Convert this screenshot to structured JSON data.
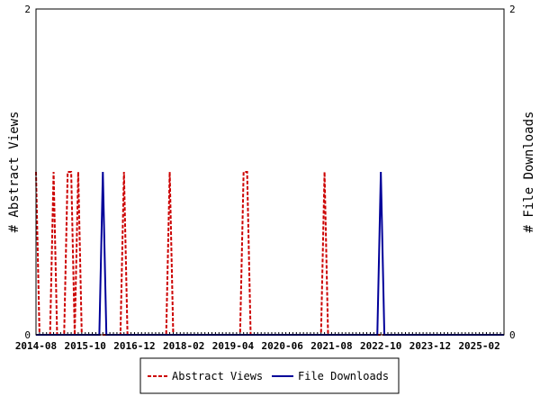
{
  "chart_data": {
    "type": "line",
    "xlabel": "",
    "ylabel_left": "# Abstract Views",
    "ylabel_right": "# File Downloads",
    "ylim": [
      0,
      2
    ],
    "yticks_left": [
      "0",
      "2"
    ],
    "yticks_right": [
      "0",
      "2"
    ],
    "x_range": [
      "2014-08",
      "2025-09"
    ],
    "x_tick_labels": [
      "2014-08",
      "2015-10",
      "2016-12",
      "2018-02",
      "2019-04",
      "2020-06",
      "2021-08",
      "2022-10",
      "2023-12",
      "2025-02"
    ],
    "legend_position": "bottom",
    "series": [
      {
        "name": "Abstract Views",
        "color": "#cc0000",
        "style": "dashed",
        "points": [
          [
            "2014-08",
            1
          ],
          [
            "2014-09",
            0
          ],
          [
            "2014-12",
            0
          ],
          [
            "2015-01",
            1
          ],
          [
            "2015-02",
            0
          ],
          [
            "2015-04",
            0
          ],
          [
            "2015-05",
            1
          ],
          [
            "2015-06",
            1
          ],
          [
            "2015-07",
            0
          ],
          [
            "2015-08",
            1
          ],
          [
            "2015-09",
            0
          ],
          [
            "2016-08",
            0
          ],
          [
            "2016-09",
            1
          ],
          [
            "2016-10",
            0
          ],
          [
            "2017-09",
            0
          ],
          [
            "2017-10",
            1
          ],
          [
            "2017-11",
            0
          ],
          [
            "2019-06",
            0
          ],
          [
            "2019-07",
            1
          ],
          [
            "2019-08",
            1
          ],
          [
            "2019-09",
            0
          ],
          [
            "2021-05",
            0
          ],
          [
            "2021-06",
            1
          ],
          [
            "2021-07",
            0
          ],
          [
            "2025-09",
            0
          ]
        ]
      },
      {
        "name": "File Downloads",
        "color": "#000099",
        "style": "solid",
        "points": [
          [
            "2014-08",
            0
          ],
          [
            "2016-02",
            0
          ],
          [
            "2016-03",
            1
          ],
          [
            "2016-04",
            0
          ],
          [
            "2022-09",
            0
          ],
          [
            "2022-10",
            1
          ],
          [
            "2022-11",
            0
          ],
          [
            "2025-09",
            0
          ]
        ]
      }
    ]
  }
}
